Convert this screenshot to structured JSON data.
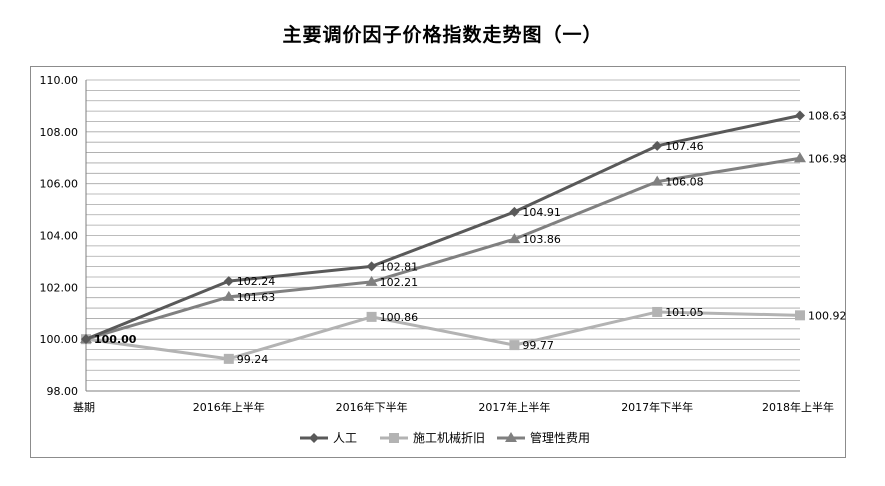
{
  "chart_data": {
    "type": "line",
    "title": "主要调价因子价格指数走势图（一）",
    "categories": [
      "基期",
      "2016年上半年",
      "2016年下半年",
      "2017年上半年",
      "2017年下半年",
      "2018年上半年"
    ],
    "ylim": [
      98.0,
      110.0
    ],
    "yticks": [
      "98.00",
      "100.00",
      "102.00",
      "104.00",
      "106.00",
      "108.00",
      "110.00"
    ],
    "grid": true,
    "legend_position": "bottom",
    "series": [
      {
        "name": "人工",
        "values": [
          100.0,
          102.24,
          102.81,
          104.91,
          107.46,
          108.63
        ],
        "labels": [
          "100.00",
          "102.24",
          "102.81",
          "104.91",
          "107.46",
          "108.63"
        ],
        "color": "#595959",
        "marker": "diamond"
      },
      {
        "name": "施工机械折旧",
        "values": [
          100.0,
          99.24,
          100.86,
          99.77,
          101.05,
          100.92
        ],
        "labels": [
          "100.00",
          "99.24",
          "100.86",
          "99.77",
          "101.05",
          "100.92"
        ],
        "color": "#b3b3b3",
        "marker": "square"
      },
      {
        "name": "管理性费用",
        "values": [
          100.0,
          101.63,
          102.21,
          103.86,
          106.08,
          106.98
        ],
        "labels": [
          "100.00",
          "101.63",
          "102.21",
          "103.86",
          "106.08",
          "106.98"
        ],
        "color": "#808080",
        "marker": "triangle"
      }
    ]
  }
}
